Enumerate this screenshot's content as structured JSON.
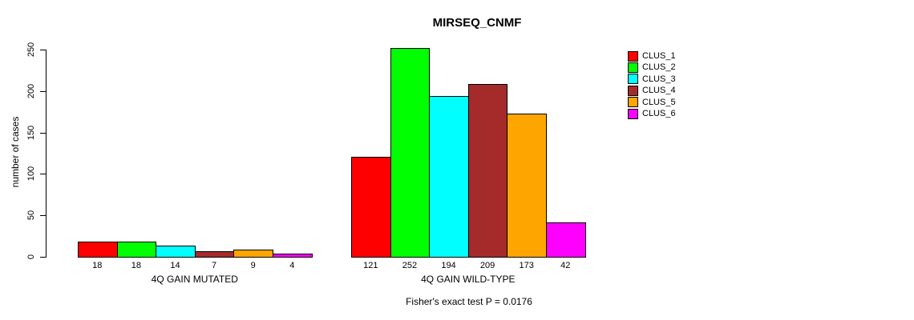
{
  "header": {
    "title": "MIRSEQ_CNMF"
  },
  "footer": {
    "annotation": "Fisher's exact test P = 0.0176"
  },
  "chart_data": {
    "type": "bar",
    "title": "MIRSEQ_CNMF",
    "xlabel": "",
    "ylabel": "number of cases",
    "ylim": [
      0,
      250
    ],
    "yticks": [
      0,
      50,
      100,
      150,
      200,
      250
    ],
    "grid": false,
    "legend_position": "right",
    "legend": [
      "CLUS_1",
      "CLUS_2",
      "CLUS_3",
      "CLUS_4",
      "CLUS_5",
      "CLUS_6"
    ],
    "series_colors": [
      "#FF0000",
      "#00FF00",
      "#00FFFF",
      "#A52A2A",
      "#FFA500",
      "#FF00FF"
    ],
    "groups": [
      {
        "label": "4Q GAIN MUTATED",
        "values": [
          18,
          18,
          14,
          7,
          9,
          4
        ]
      },
      {
        "label": "4Q GAIN WILD-TYPE",
        "values": [
          121,
          252,
          194,
          209,
          173,
          42
        ]
      }
    ],
    "annotation": "Fisher's exact test P = 0.0176"
  }
}
